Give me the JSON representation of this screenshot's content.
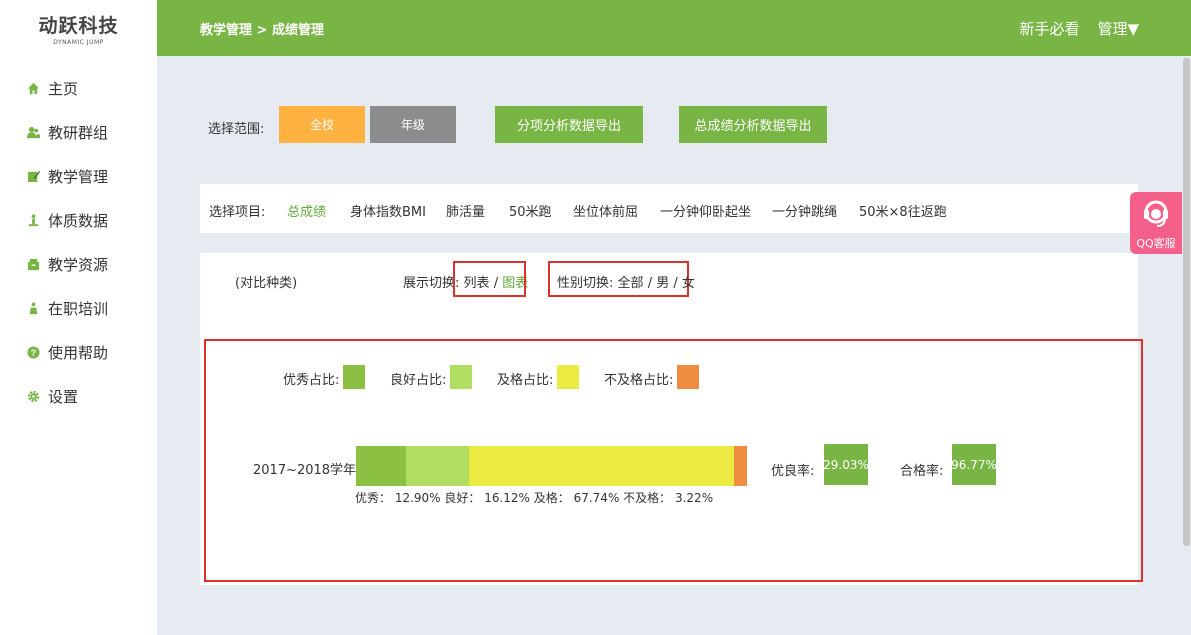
{
  "logo": {
    "main": "动跃科技",
    "sub": "DYNAMIC JUMP"
  },
  "nav": [
    {
      "label": "主页",
      "icon": "home-icon"
    },
    {
      "label": "教研群组",
      "icon": "user-group-icon"
    },
    {
      "label": "教学管理",
      "icon": "edit-icon"
    },
    {
      "label": "体质数据",
      "icon": "figure-icon"
    },
    {
      "label": "教学资源",
      "icon": "folder-icon"
    },
    {
      "label": "在职培训",
      "icon": "trainer-icon"
    },
    {
      "label": "使用帮助",
      "icon": "help-icon"
    },
    {
      "label": "设置",
      "icon": "gear-icon"
    }
  ],
  "header": {
    "breadcrumb": "教学管理 > 成绩管理",
    "guide": "新手必看",
    "manage": "管理▼"
  },
  "toolbar": {
    "range_label": "选择范围:",
    "school": "全校",
    "grade": "年级",
    "export_item": "分项分析数据导出",
    "export_total": "总成绩分析数据导出"
  },
  "projects": {
    "label": "选择项目:",
    "items": [
      "总成绩",
      "身体指数BMI",
      "肺活量",
      "50米跑",
      "坐位体前屈",
      "一分钟仰卧起坐",
      "一分钟跳绳",
      "50米×8往返跑"
    ]
  },
  "filters": {
    "compare": "(对比种类)",
    "display_label": "展示切换:",
    "display_list": "列表",
    "display_chart": "图表",
    "gender_label": "性别切换:",
    "gender_all": "全部",
    "gender_male": "男",
    "gender_female": "女",
    "sep": "/"
  },
  "legend": [
    {
      "label": "优秀占比:",
      "color": "#8cc043"
    },
    {
      "label": "良好占比:",
      "color": "#b1dd62"
    },
    {
      "label": "及格占比:",
      "color": "#ebea42"
    },
    {
      "label": "不及格占比:",
      "color": "#ee8c3f"
    }
  ],
  "chart_data": {
    "type": "bar",
    "orientation": "horizontal-stacked",
    "categories": [
      "2017~2018学年"
    ],
    "series": [
      {
        "name": "优秀",
        "values": [
          12.9
        ],
        "color": "#8cc043"
      },
      {
        "name": "良好",
        "values": [
          16.12
        ],
        "color": "#b1dd62"
      },
      {
        "name": "及格",
        "values": [
          67.74
        ],
        "color": "#ebea42"
      },
      {
        "name": "不及格",
        "values": [
          3.22
        ],
        "color": "#ee8c3f"
      }
    ],
    "caption": "优秀： 12.90%   良好： 16.12%   及格： 67.74%   不及格： 3.22%",
    "unit": "%"
  },
  "rates": {
    "excellent_label": "优良率:",
    "excellent_value": "29.03%",
    "pass_label": "合格率:",
    "pass_value": "96.77%"
  },
  "qq": {
    "label": "QQ客服"
  }
}
